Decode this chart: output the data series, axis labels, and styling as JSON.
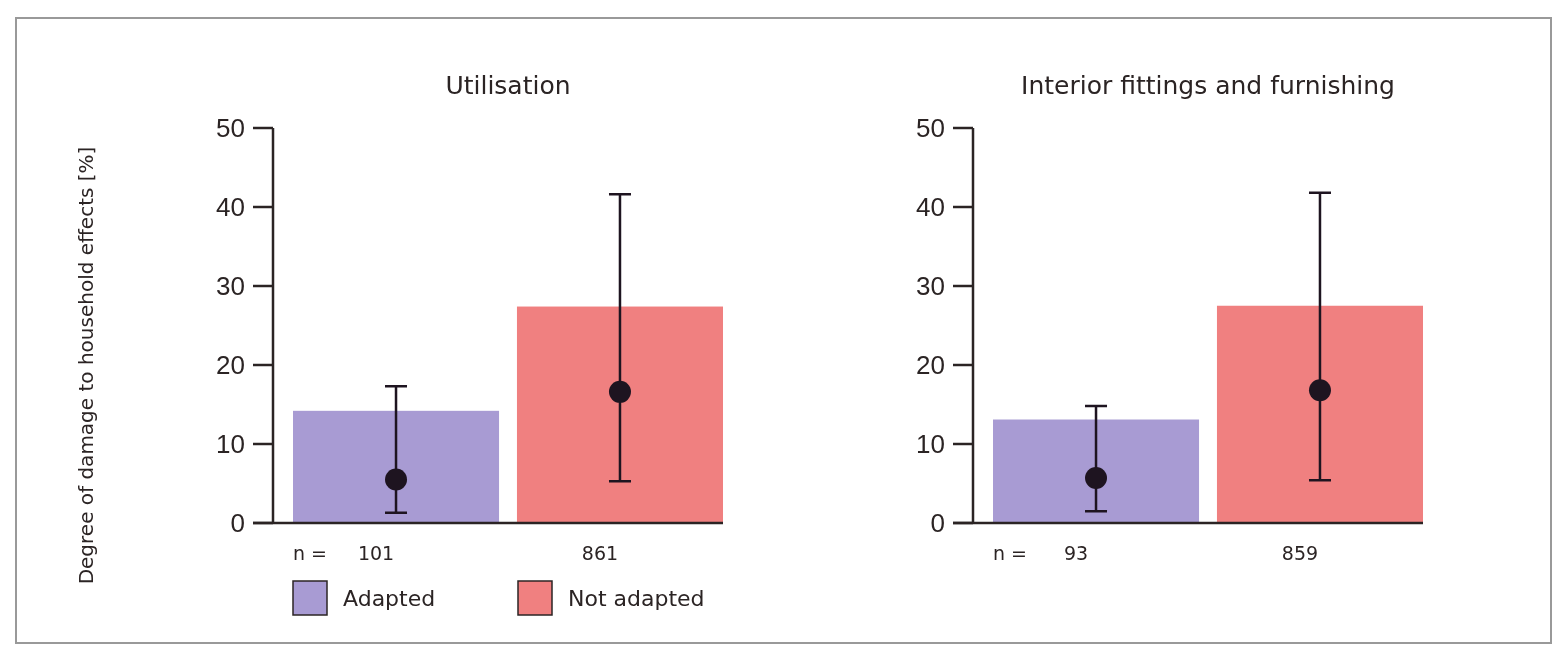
{
  "chart_data": [
    {
      "type": "bar",
      "title": "Utilisation",
      "ylabel": "Degree of damage to household effects [%]",
      "categories": [
        "101",
        "861"
      ],
      "ylim": [
        0,
        50
      ],
      "yticks": [
        0,
        10,
        20,
        30,
        40,
        50
      ],
      "legend": "bottom",
      "annotations": [
        "n ="
      ],
      "series": [
        {
          "name": "Adapted",
          "color": "#a89bd3",
          "values": [
            14.2,
            null
          ]
        },
        {
          "name": "Not adapted",
          "color": "#f08080",
          "values": [
            null,
            27.4
          ]
        },
        {
          "type": "scatter",
          "color": "#1e1420",
          "x": [
            "101",
            "861"
          ],
          "values": [
            5.5,
            16.6
          ],
          "errors": [
            [
              1.3,
              17.3
            ],
            [
              5.3,
              41.6
            ]
          ],
          "marker": "circle"
        }
      ]
    },
    {
      "type": "bar",
      "title": "Interior fittings and furnishing",
      "categories": [
        "93",
        "859"
      ],
      "ylim": [
        0,
        50
      ],
      "yticks": [
        0,
        10,
        20,
        30,
        40,
        50
      ],
      "annotations": [
        "n ="
      ],
      "series": [
        {
          "color": "#a89bd3",
          "values": [
            13.1,
            null
          ]
        },
        {
          "color": "#f08080",
          "values": [
            null,
            27.5
          ]
        },
        {
          "type": "scatter",
          "color": "#1e1420",
          "x": [
            "93",
            "859"
          ],
          "values": [
            5.7,
            16.8
          ],
          "errors": [
            [
              1.5,
              14.8
            ],
            [
              5.4,
              41.8
            ]
          ],
          "marker": "circle"
        }
      ]
    }
  ]
}
